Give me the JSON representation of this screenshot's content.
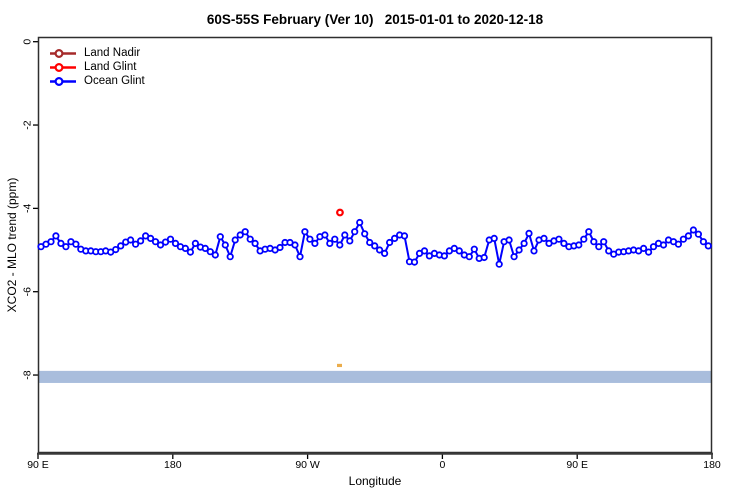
{
  "chart_data": {
    "type": "line",
    "title": "60S-55S February (Ver 10)   2015-01-01 to 2020-12-18",
    "xlabel": "Longitude",
    "ylabel": "XCO2 - MLO trend (ppm)",
    "x_axis": {
      "range_deg": [
        0,
        450
      ],
      "ticks_deg": [
        0,
        90,
        180,
        270,
        360,
        450
      ],
      "tick_labels": [
        "90 E",
        "180",
        "90 W",
        "0",
        "90 E",
        "180"
      ]
    },
    "y_axis": {
      "range": [
        0.15,
        -9.9
      ],
      "ticks": [
        0,
        -2,
        -4,
        -6,
        -8
      ],
      "tick_labels": [
        "0",
        "-2",
        "-4",
        "-6",
        "-8"
      ]
    },
    "grid": false,
    "legend_position": "top-left-inside",
    "legend": [
      {
        "label": "Land Nadir",
        "color": "#A52A2A"
      },
      {
        "label": "Land Glint",
        "color": "#FF0000"
      },
      {
        "label": "Ocean Glint",
        "color": "#0000FF"
      }
    ],
    "band": {
      "value_top": -7.9,
      "value_bottom": -8.19,
      "color": "#A9BDDC",
      "full_width": true
    },
    "aux_marker": {
      "x_deg": 201.3,
      "value": -7.77,
      "color": "#EBAD4C"
    },
    "series": [
      {
        "name": "Ocean Glint",
        "color": "#0000FF",
        "marker": "open-circle",
        "x_start_deg": 2.0,
        "x_step_deg": 3.325,
        "values": [
          -4.92,
          -4.86,
          -4.8,
          -4.66,
          -4.84,
          -4.92,
          -4.8,
          -4.86,
          -4.98,
          -5.02,
          -5.02,
          -5.04,
          -5.04,
          -5.02,
          -5.05,
          -4.99,
          -4.9,
          -4.81,
          -4.76,
          -4.86,
          -4.78,
          -4.66,
          -4.72,
          -4.8,
          -4.88,
          -4.81,
          -4.74,
          -4.84,
          -4.92,
          -4.96,
          -5.05,
          -4.84,
          -4.93,
          -4.96,
          -5.04,
          -5.12,
          -4.68,
          -4.88,
          -5.16,
          -4.76,
          -4.64,
          -4.56,
          -4.74,
          -4.84,
          -5.02,
          -4.98,
          -4.96,
          -5.0,
          -4.94,
          -4.82,
          -4.82,
          -4.88,
          -5.16,
          -4.56,
          -4.74,
          -4.84,
          -4.68,
          -4.64,
          -4.84,
          -4.74,
          -4.88,
          -4.64,
          -4.78,
          -4.56,
          -4.34,
          -4.61,
          -4.82,
          -4.9,
          -5.0,
          -5.08,
          -4.82,
          -4.72,
          -4.64,
          -4.66,
          -5.28,
          -5.29,
          -5.08,
          -5.02,
          -5.14,
          -5.08,
          -5.12,
          -5.14,
          -5.02,
          -4.96,
          -5.02,
          -5.12,
          -5.16,
          -4.98,
          -5.2,
          -5.18,
          -4.76,
          -4.72,
          -5.34,
          -4.8,
          -4.76,
          -5.16,
          -5.0,
          -4.84,
          -4.6,
          -5.02,
          -4.76,
          -4.72,
          -4.84,
          -4.78,
          -4.74,
          -4.84,
          -4.92,
          -4.9,
          -4.88,
          -4.74,
          -4.56,
          -4.8,
          -4.92,
          -4.8,
          -5.02,
          -5.1,
          -5.05,
          -5.04,
          -5.02,
          -5.0,
          -5.02,
          -4.96,
          -5.05,
          -4.92,
          -4.84,
          -4.88,
          -4.76,
          -4.8,
          -4.86,
          -4.74,
          -4.66,
          -4.52,
          -4.62,
          -4.8,
          -4.9
        ]
      },
      {
        "name": "Land Glint",
        "color": "#FF0000",
        "marker": "open-circle",
        "points": [
          {
            "x_deg": 201.6,
            "value": -4.1
          }
        ]
      },
      {
        "name": "Land Nadir",
        "color": "#A52A2A",
        "marker": "open-circle",
        "points": []
      }
    ]
  }
}
